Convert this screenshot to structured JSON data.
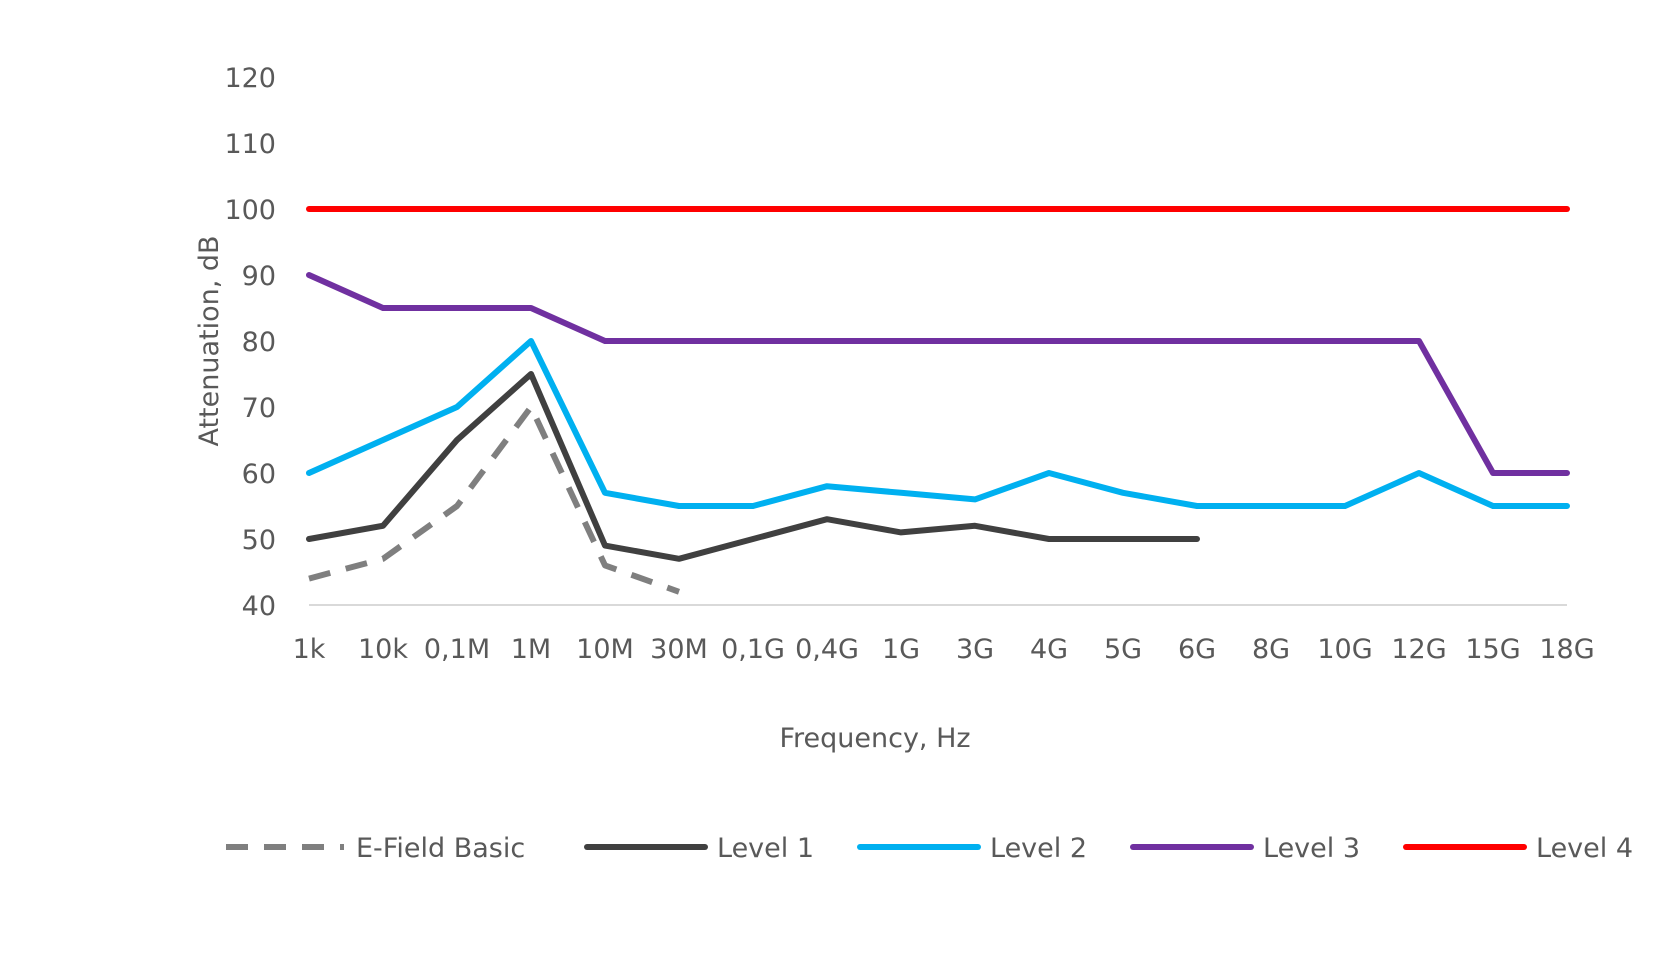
{
  "chart_data": {
    "type": "line",
    "xlabel": "Frequency, Hz",
    "ylabel": "Attenuation, dB",
    "categories": [
      "1k",
      "10k",
      "0,1M",
      "1M",
      "10M",
      "30M",
      "0,1G",
      "0,4G",
      "1G",
      "3G",
      "4G",
      "5G",
      "6G",
      "8G",
      "10G",
      "12G",
      "15G",
      "18G"
    ],
    "ylim": [
      40,
      120
    ],
    "yticks": [
      40,
      50,
      60,
      70,
      80,
      90,
      100,
      110,
      120
    ],
    "grid": false,
    "legend": "bottom",
    "series": [
      {
        "name": "E-Field Basic",
        "color": "#7f7f7f",
        "dashed": true,
        "values": [
          44,
          47,
          55,
          70,
          46,
          42,
          null,
          null,
          null,
          null,
          null,
          null,
          null,
          null,
          null,
          null,
          null,
          null
        ]
      },
      {
        "name": "Level 1",
        "color": "#404040",
        "dashed": false,
        "values": [
          50,
          52,
          65,
          75,
          49,
          47,
          50,
          53,
          51,
          52,
          50,
          50,
          50,
          null,
          null,
          null,
          null,
          null
        ]
      },
      {
        "name": "Level 2",
        "color": "#00b0f0",
        "dashed": false,
        "values": [
          60,
          65,
          70,
          80,
          57,
          55,
          55,
          58,
          57,
          56,
          60,
          57,
          55,
          55,
          55,
          60,
          55,
          55
        ]
      },
      {
        "name": "Level 3",
        "color": "#7030a0",
        "dashed": false,
        "values": [
          90,
          85,
          85,
          85,
          80,
          80,
          80,
          80,
          80,
          80,
          80,
          80,
          80,
          80,
          80,
          80,
          60,
          60
        ]
      },
      {
        "name": "Level 4",
        "color": "#ff0000",
        "dashed": false,
        "values": [
          100,
          100,
          100,
          100,
          100,
          100,
          100,
          100,
          100,
          100,
          100,
          100,
          100,
          100,
          100,
          100,
          100,
          100
        ]
      }
    ]
  }
}
